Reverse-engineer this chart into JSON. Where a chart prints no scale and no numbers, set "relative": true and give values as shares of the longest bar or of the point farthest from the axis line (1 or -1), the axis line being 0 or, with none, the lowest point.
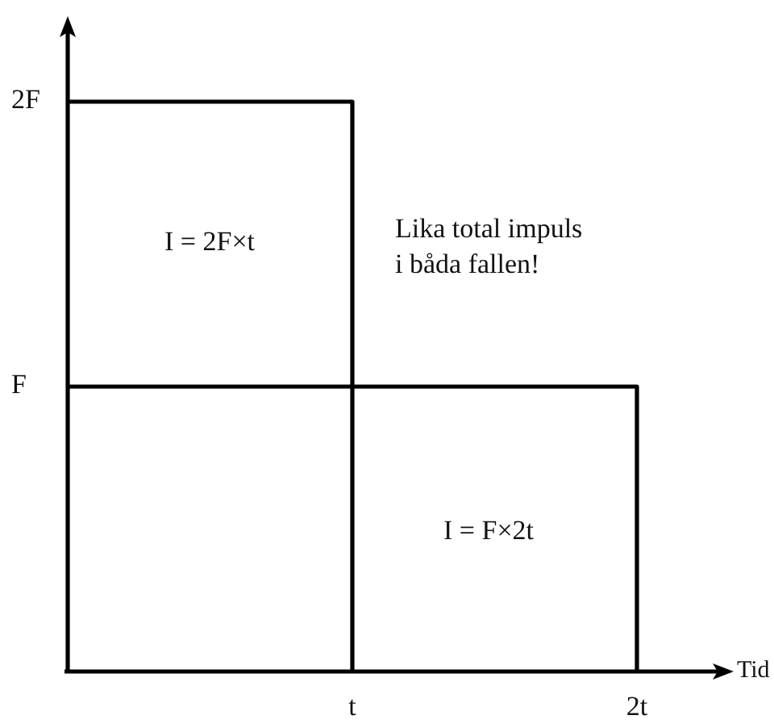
{
  "chart_data": {
    "type": "step",
    "relative": true,
    "xlabel": "Tid",
    "categories": [
      null,
      "t",
      "2t"
    ],
    "series": [
      {
        "color": "#000000",
        "values": [
          1,
          0,
          null
        ]
      },
      {
        "color": "#000000",
        "values": [
          0.5,
          0.5,
          0
        ]
      }
    ],
    "line_style": "solid",
    "annotations": [
      "2F",
      "Lika total impuls\ni båda fallen!",
      "I = 2F×t",
      "F",
      "I = F×2t"
    ]
  }
}
